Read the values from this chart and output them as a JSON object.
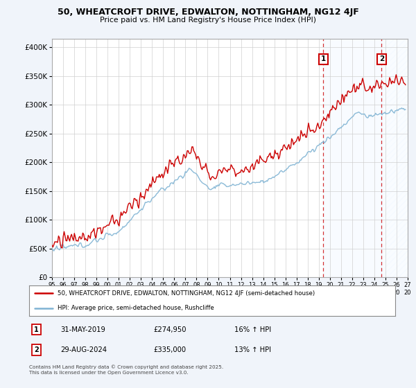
{
  "title_line1": "50, WHEATCROFT DRIVE, EDWALTON, NOTTINGHAM, NG12 4JF",
  "title_line2": "Price paid vs. HM Land Registry's House Price Index (HPI)",
  "ylabel_ticks": [
    "£0",
    "£50K",
    "£100K",
    "£150K",
    "£200K",
    "£250K",
    "£300K",
    "£350K",
    "£400K"
  ],
  "ytick_values": [
    0,
    50000,
    100000,
    150000,
    200000,
    250000,
    300000,
    350000,
    400000
  ],
  "ylim": [
    0,
    415000
  ],
  "xlim_start": 1995.0,
  "xlim_end": 2027.0,
  "hpi_color": "#7fb3d3",
  "price_color": "#cc0000",
  "marker1_date": 2019.42,
  "marker1_price": 274950,
  "marker2_date": 2024.66,
  "marker2_price": 335000,
  "legend_label1": "50, WHEATCROFT DRIVE, EDWALTON, NOTTINGHAM, NG12 4JF (semi-detached house)",
  "legend_label2": "HPI: Average price, semi-detached house, Rushcliffe",
  "footer_text": "Contains HM Land Registry data © Crown copyright and database right 2025.\nThis data is licensed under the Open Government Licence v3.0.",
  "background_color": "#f0f4fa",
  "plot_bg_color": "#ffffff",
  "grid_color": "#cccccc",
  "shade_color": "#ddeeff",
  "hatch_color": "#ccddee"
}
